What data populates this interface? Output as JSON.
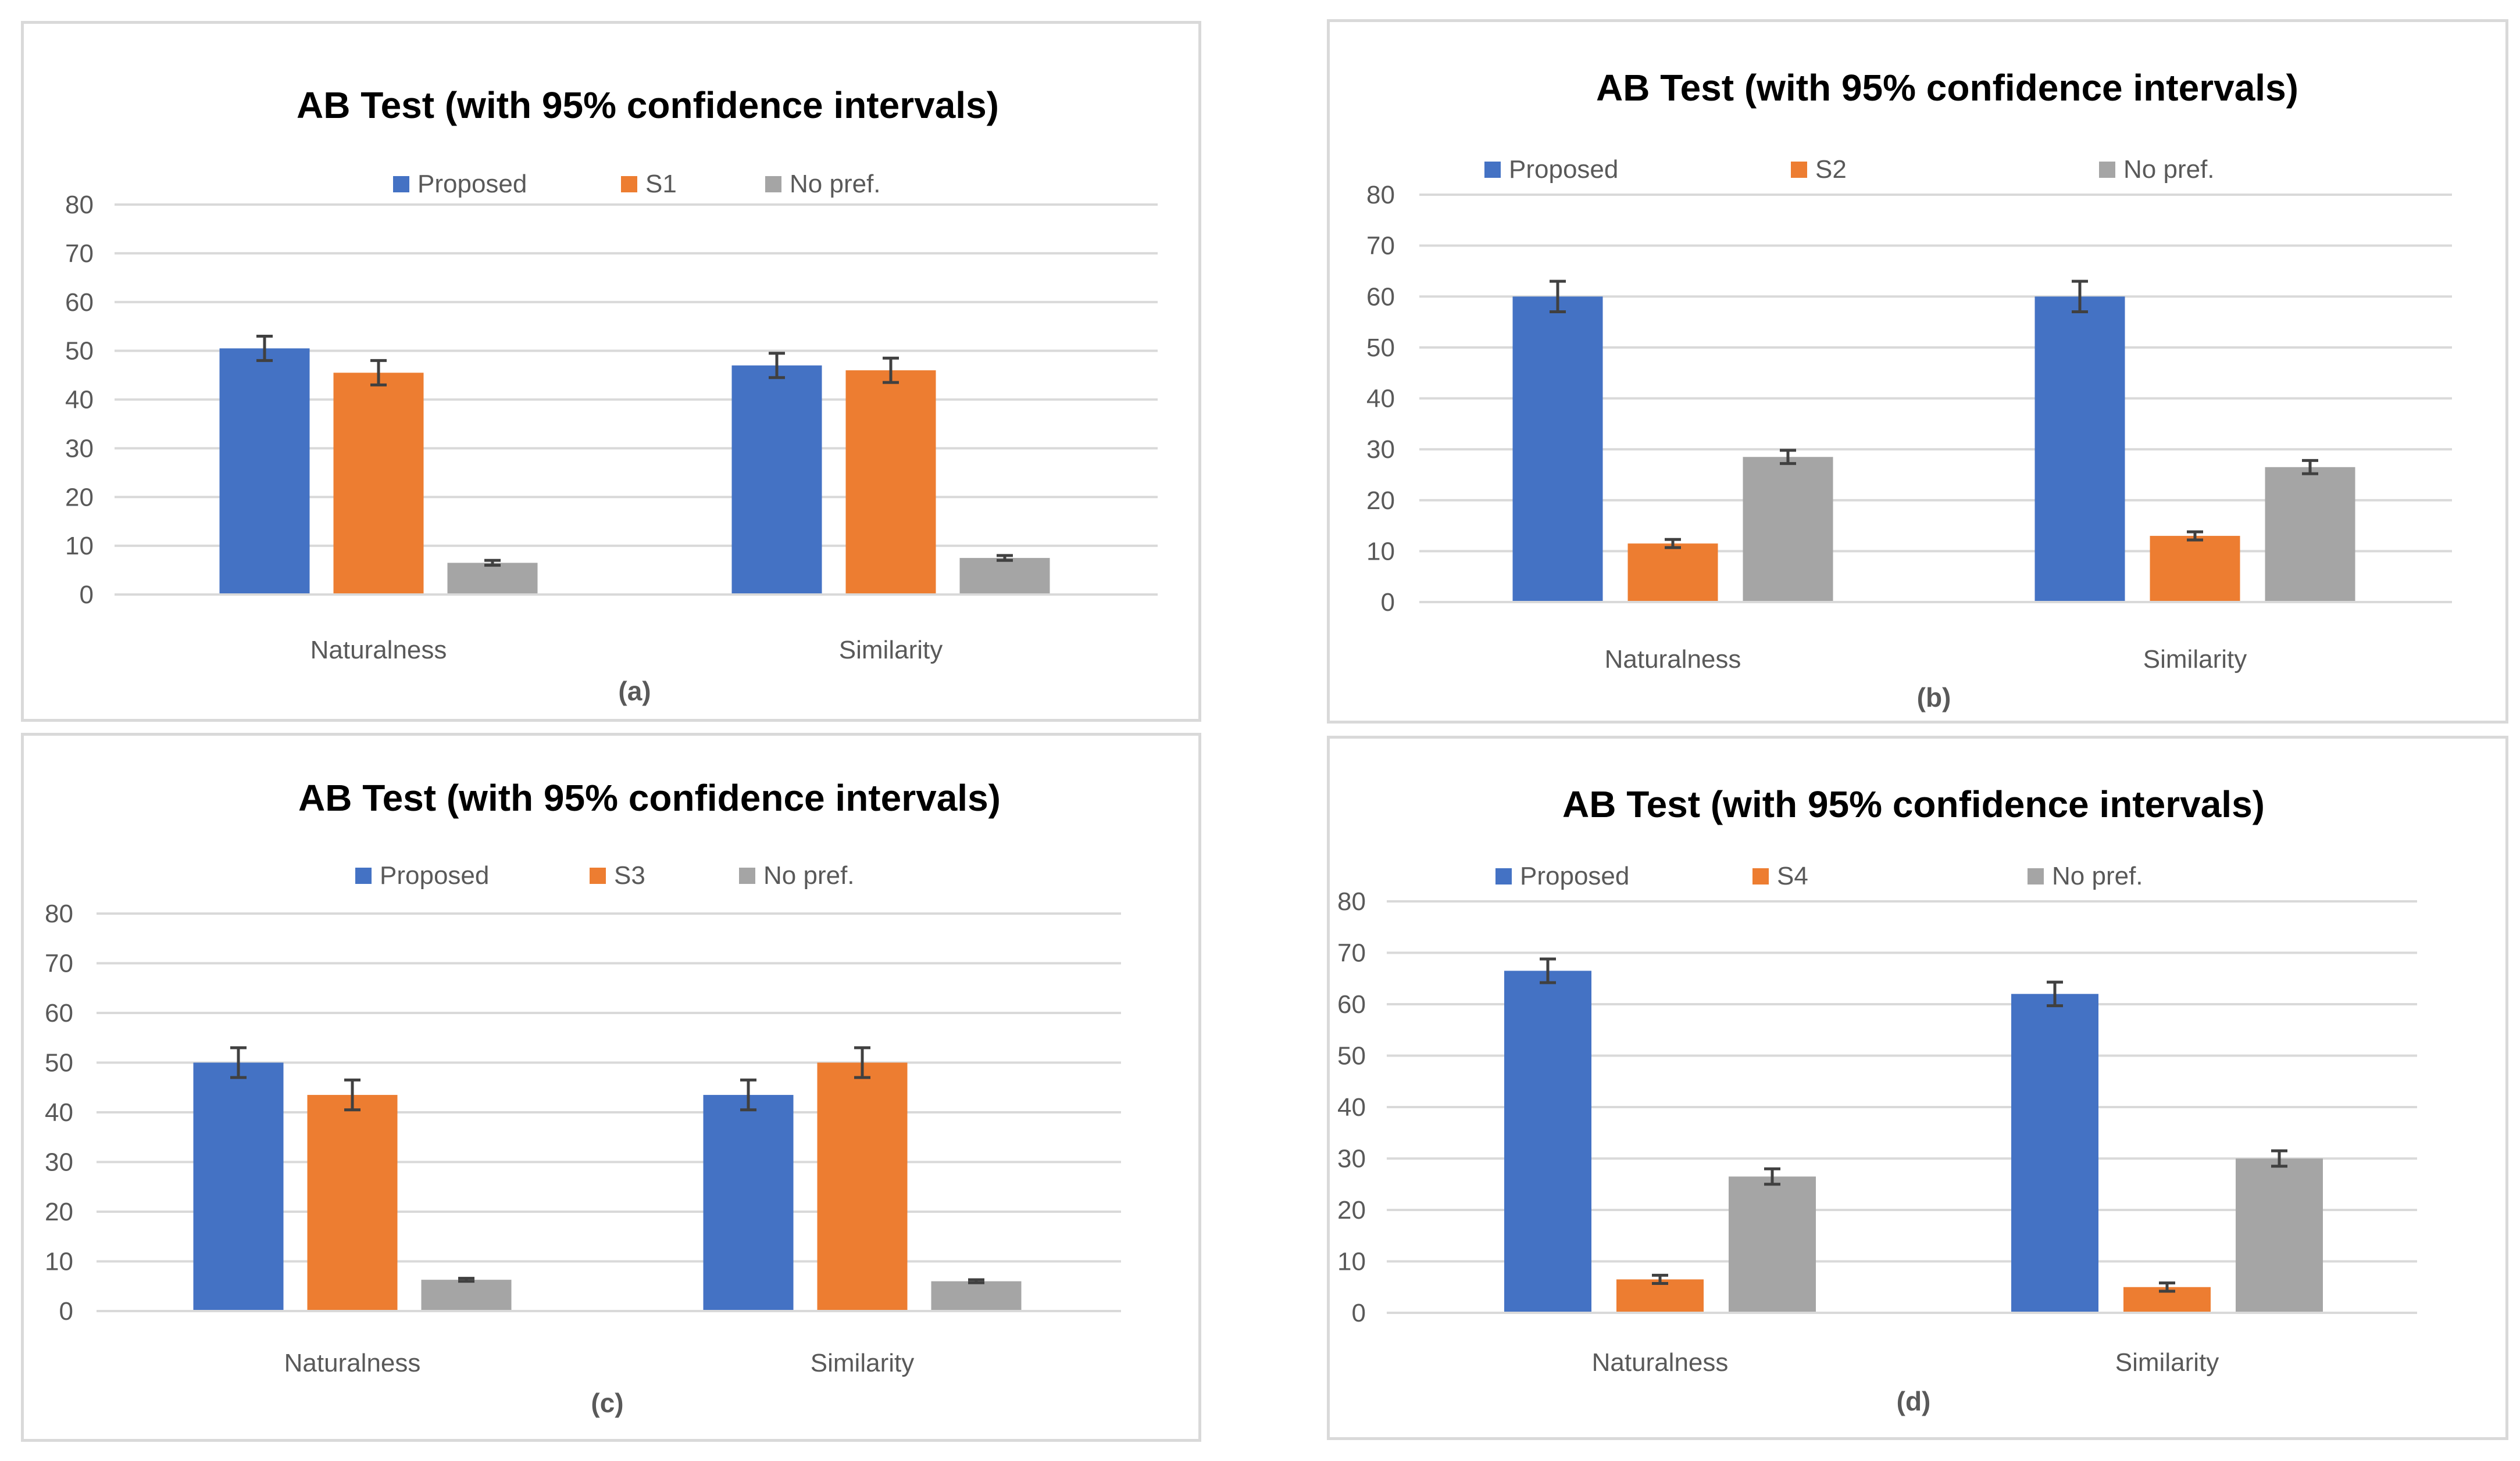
{
  "chart_data": [
    {
      "type": "bar",
      "panel_label": "(a)",
      "title": "AB Test (with 95% confidence intervals)",
      "categories": [
        "Naturalness",
        "Similarity"
      ],
      "series": [
        {
          "name": "Proposed",
          "color": "#4472c4",
          "values": [
            50.5,
            47
          ],
          "error": [
            2.5,
            2.5
          ]
        },
        {
          "name": "S1",
          "color": "#ed7d31",
          "values": [
            45.5,
            46
          ],
          "error": [
            2.5,
            2.5
          ]
        },
        {
          "name": "No pref.",
          "color": "#a5a5a5",
          "values": [
            6.5,
            7.5
          ],
          "error": [
            0.5,
            0.5
          ]
        }
      ],
      "ylim": [
        0,
        80
      ],
      "yticks": [
        "0",
        "10",
        "20",
        "30",
        "40",
        "50",
        "60",
        "70",
        "80"
      ],
      "xlabel": "",
      "ylabel": ""
    },
    {
      "type": "bar",
      "panel_label": "(b)",
      "title": "AB Test (with 95% confidence intervals)",
      "categories": [
        "Naturalness",
        "Similarity"
      ],
      "series": [
        {
          "name": "Proposed",
          "color": "#4472c4",
          "values": [
            60,
            60
          ],
          "error": [
            3,
            3
          ]
        },
        {
          "name": "S2",
          "color": "#ed7d31",
          "values": [
            11.5,
            13
          ],
          "error": [
            0.8,
            0.8
          ]
        },
        {
          "name": "No pref.",
          "color": "#a5a5a5",
          "values": [
            28.5,
            26.5
          ],
          "error": [
            1.3,
            1.3
          ]
        }
      ],
      "ylim": [
        0,
        80
      ],
      "yticks": [
        "0",
        "10",
        "20",
        "30",
        "40",
        "50",
        "60",
        "70",
        "80"
      ],
      "xlabel": "",
      "ylabel": ""
    },
    {
      "type": "bar",
      "panel_label": "(c)",
      "title": "AB Test (with 95% confidence intervals)",
      "categories": [
        "Naturalness",
        "Similarity"
      ],
      "series": [
        {
          "name": "Proposed",
          "color": "#4472c4",
          "values": [
            50,
            43.5
          ],
          "error": [
            3,
            3
          ]
        },
        {
          "name": "S3",
          "color": "#ed7d31",
          "values": [
            43.5,
            50
          ],
          "error": [
            3,
            3
          ]
        },
        {
          "name": "No pref.",
          "color": "#a5a5a5",
          "values": [
            6.3,
            6
          ],
          "error": [
            0.3,
            0.3
          ]
        }
      ],
      "ylim": [
        0,
        80
      ],
      "yticks": [
        "0",
        "10",
        "20",
        "30",
        "40",
        "50",
        "60",
        "70",
        "80"
      ],
      "xlabel": "",
      "ylabel": ""
    },
    {
      "type": "bar",
      "panel_label": "(d)",
      "title": "AB Test (with 95% confidence intervals)",
      "categories": [
        "Naturalness",
        "Similarity"
      ],
      "series": [
        {
          "name": "Proposed",
          "color": "#4472c4",
          "values": [
            66.5,
            62
          ],
          "error": [
            2.3,
            2.3
          ]
        },
        {
          "name": "S4",
          "color": "#ed7d31",
          "values": [
            6.5,
            5
          ],
          "error": [
            0.8,
            0.8
          ]
        },
        {
          "name": "No pref.",
          "color": "#a5a5a5",
          "values": [
            26.5,
            30
          ],
          "error": [
            1.5,
            1.5
          ]
        }
      ],
      "ylim": [
        0,
        80
      ],
      "yticks": [
        "0",
        "10",
        "20",
        "30",
        "40",
        "50",
        "60",
        "70",
        "80"
      ],
      "xlabel": "",
      "ylabel": ""
    }
  ]
}
